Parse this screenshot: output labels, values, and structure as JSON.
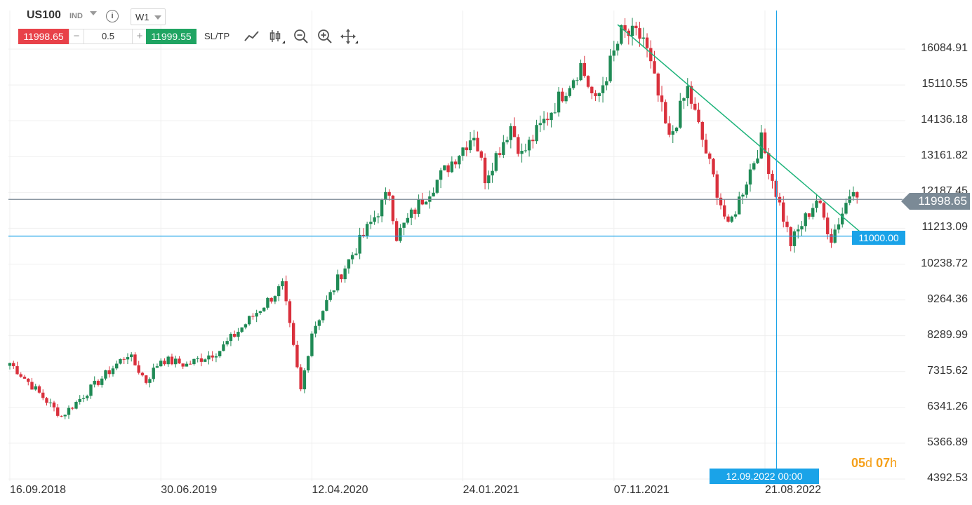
{
  "toolbar": {
    "symbol": "US100",
    "instrument_type": "IND",
    "info_glyph": "i",
    "timeframe": "W1",
    "sell_price": "11998.65",
    "minus": "−",
    "quantity": "0.5",
    "plus": "+",
    "buy_price": "11999.55",
    "sltp": "SL/TP",
    "icons": [
      "line-draw-icon",
      "candle-type-icon",
      "zoom-out-icon",
      "zoom-in-icon",
      "move-icon"
    ]
  },
  "colors": {
    "up": "#1f8a55",
    "down": "#d9303c",
    "sell": "#e84149",
    "buy": "#1fa462",
    "accent_blue": "#1aa3e8",
    "trendline": "#1db37a",
    "current_price_line": "#7b8a96",
    "countdown": "#f5a01a"
  },
  "chart_data": {
    "type": "candlestick",
    "timeframe": "W1",
    "y_axis_side": "right",
    "ylim": [
      4100,
      17000
    ],
    "y_ticks": [
      "16084.91",
      "15110.55",
      "14136.18",
      "13161.82",
      "12187.45",
      "11213.09",
      "10238.72",
      "9264.36",
      "8289.99",
      "7315.62",
      "6341.26",
      "5366.89",
      "4392.53"
    ],
    "x_ticks": [
      "16.09.2018",
      "30.06.2019",
      "12.04.2020",
      "24.01.2021",
      "07.11.2021",
      "21.08.2022"
    ],
    "current_price": 11998.65,
    "current_price_label": "11998.65",
    "horizontal_level": 11000.0,
    "horizontal_level_label": "11000.00",
    "crosshair_date_label": "12.09.2022 00:00",
    "countdown": {
      "days": "05",
      "days_unit": "d",
      "hours": "07",
      "hours_unit": "h"
    },
    "trendline": {
      "from": {
        "date": "2021-11-14",
        "price": 16750
      },
      "to": {
        "date": "2023-02-05",
        "price": 11050
      }
    },
    "anchors": [
      {
        "date": "2018-09-16",
        "close": 7550
      },
      {
        "date": "2018-12-23",
        "close": 6100
      },
      {
        "date": "2019-04-28",
        "close": 7800
      },
      {
        "date": "2019-06-02",
        "close": 7050
      },
      {
        "date": "2019-06-30",
        "close": 7650
      },
      {
        "date": "2019-08-18",
        "close": 7500
      },
      {
        "date": "2019-10-20",
        "close": 7900
      },
      {
        "date": "2020-02-16",
        "close": 9650
      },
      {
        "date": "2020-03-22",
        "close": 6800
      },
      {
        "date": "2020-04-12",
        "close": 8400
      },
      {
        "date": "2020-06-07",
        "close": 10000
      },
      {
        "date": "2020-09-06",
        "close": 12200
      },
      {
        "date": "2020-09-20",
        "close": 11000
      },
      {
        "date": "2020-11-08",
        "close": 12000
      },
      {
        "date": "2021-02-14",
        "close": 13800
      },
      {
        "date": "2021-03-07",
        "close": 12600
      },
      {
        "date": "2021-04-25",
        "close": 14000
      },
      {
        "date": "2021-05-16",
        "close": 13200
      },
      {
        "date": "2021-09-05",
        "close": 15650
      },
      {
        "date": "2021-10-03",
        "close": 14600
      },
      {
        "date": "2021-11-21",
        "close": 16500
      },
      {
        "date": "2022-01-02",
        "close": 16400
      },
      {
        "date": "2022-02-20",
        "close": 13600
      },
      {
        "date": "2022-03-27",
        "close": 15000
      },
      {
        "date": "2022-06-12",
        "close": 11200
      },
      {
        "date": "2022-08-14",
        "close": 13600
      },
      {
        "date": "2022-10-09",
        "close": 10800
      },
      {
        "date": "2022-11-27",
        "close": 12000
      },
      {
        "date": "2022-12-25",
        "close": 10950
      },
      {
        "date": "2023-01-15",
        "close": 11650
      },
      {
        "date": "2023-02-05",
        "close": 12400
      },
      {
        "date": "2023-02-12",
        "close": 12050
      }
    ]
  }
}
